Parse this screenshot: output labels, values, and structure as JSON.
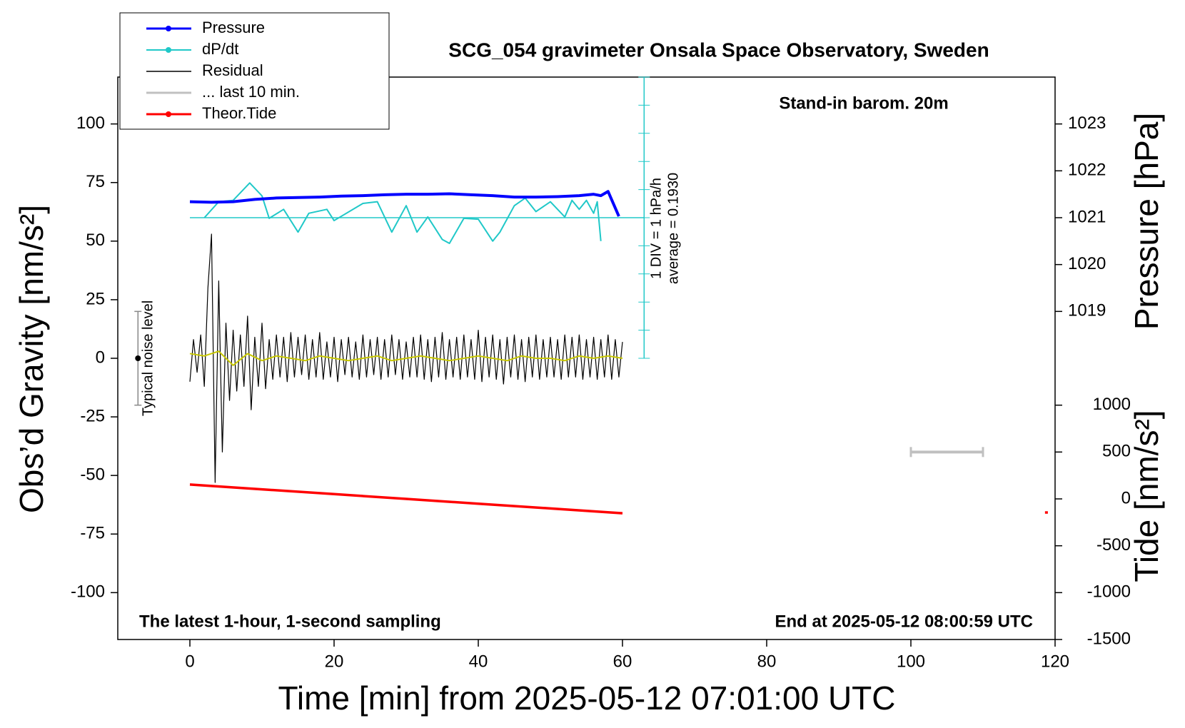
{
  "chart_data": {
    "type": "line",
    "title": "SCG_054 gravimeter Onsala Space Observatory, Sweden",
    "xlabel": "Time [min] from 2025-05-12 07:01:00 UTC",
    "ylabel": "Obs’d Gravity [nm/s²]",
    "y2label": "Pressure [hPa]",
    "y3label": "Tide [nm/s²]",
    "annotations": {
      "barometer": "Stand-in barom. 20m",
      "sampling": "The latest 1-hour, 1-second sampling",
      "end": "End at 2025-05-12 08:00:59 UTC",
      "noise": "Typical noise level",
      "div": "1 DIV = 1 hPa/h",
      "average": "average = 0.1930"
    },
    "xlim": [
      -10,
      120
    ],
    "xticks": [
      0,
      20,
      40,
      60,
      80,
      100,
      120
    ],
    "ylim": [
      -120,
      120
    ],
    "yticks": [
      -100,
      -75,
      -50,
      -25,
      0,
      25,
      50,
      75,
      100
    ],
    "y2lim": [
      1012,
      1024
    ],
    "y2ticks": [
      1019,
      1020,
      1021,
      1022,
      1023
    ],
    "y3lim": [
      -1500,
      4500
    ],
    "y3ticks": [
      -1500,
      -1000,
      -500,
      0,
      500,
      1000
    ],
    "dpdt_lim": [
      -4.807,
      5.193
    ],
    "dpdt_average": 0.193,
    "dpdt_div": 1,
    "noise_bar": {
      "x": -7.2,
      "low": -20,
      "center": 0,
      "high": 20
    },
    "series": [
      {
        "name": "Pressure",
        "color": "#0000ff",
        "axis": "y2",
        "marker": true,
        "width": 4,
        "x": [
          0,
          3,
          6,
          9,
          12,
          15,
          18,
          21,
          24,
          27,
          30,
          33,
          36,
          39,
          42,
          45,
          48,
          51,
          54,
          56,
          57,
          58,
          59.5
        ],
        "values": [
          1021.34,
          1021.33,
          1021.34,
          1021.39,
          1021.42,
          1021.43,
          1021.44,
          1021.46,
          1021.47,
          1021.49,
          1021.5,
          1021.5,
          1021.51,
          1021.49,
          1021.47,
          1021.44,
          1021.44,
          1021.45,
          1021.47,
          1021.5,
          1021.47,
          1021.56,
          1021.03
        ]
      },
      {
        "name": "dP/dt",
        "color": "#20c8c8",
        "axis": "dpdt",
        "marker": true,
        "width": 2,
        "x": [
          2,
          4,
          6,
          8.3,
          10,
          11,
          13,
          15,
          16.5,
          19,
          20,
          24,
          26,
          28,
          30,
          31.5,
          33,
          35,
          36,
          38,
          40,
          42,
          43,
          45,
          46.5,
          48,
          50,
          52,
          53,
          54,
          55,
          56,
          56.5,
          57
        ],
        "values": [
          0.19,
          0.76,
          0.81,
          1.43,
          0.97,
          0.17,
          0.49,
          -0.32,
          0.35,
          0.49,
          0.09,
          0.7,
          0.76,
          -0.32,
          0.62,
          -0.32,
          0.22,
          -0.58,
          -0.72,
          0.17,
          0.14,
          -0.64,
          -0.32,
          0.62,
          0.89,
          0.41,
          0.76,
          0.22,
          0.81,
          0.49,
          0.81,
          0.35,
          0.76,
          -0.64
        ]
      },
      {
        "name": "Residual",
        "color": "#000000",
        "axis": "y",
        "marker": false,
        "width": 1.2,
        "x": [
          0,
          0.5,
          1,
          1.5,
          2,
          2.5,
          3,
          3.5,
          4,
          4.5,
          5,
          5.5,
          6,
          6.5,
          7,
          7.5,
          8,
          8.5,
          9,
          9.5,
          10,
          10.5,
          11,
          11.5,
          12,
          12.5,
          13,
          13.5,
          14,
          14.5,
          15,
          15.5,
          16,
          16.5,
          17,
          17.5,
          18,
          18.5,
          19,
          19.5,
          20,
          20.5,
          21,
          21.5,
          22,
          22.5,
          23,
          23.5,
          24,
          24.5,
          25,
          25.5,
          26,
          26.5,
          27,
          27.5,
          28,
          28.5,
          29,
          29.5,
          30,
          30.5,
          31,
          31.5,
          32,
          32.5,
          33,
          33.5,
          34,
          34.5,
          35,
          35.5,
          36,
          36.5,
          37,
          37.5,
          38,
          38.5,
          39,
          39.5,
          40,
          40.5,
          41,
          41.5,
          42,
          42.5,
          43,
          43.5,
          44,
          44.5,
          45,
          45.5,
          46,
          46.5,
          47,
          47.5,
          48,
          48.5,
          49,
          49.5,
          50,
          50.5,
          51,
          51.5,
          52,
          52.5,
          53,
          53.5,
          54,
          54.5,
          55,
          55.5,
          56,
          56.5,
          57,
          57.5,
          58,
          58.5,
          59,
          59.5,
          60
        ],
        "values": [
          -10,
          8,
          -6,
          10,
          -12,
          30,
          53,
          -53,
          33,
          -40,
          15,
          -18,
          12,
          -14,
          10,
          -12,
          18,
          -22,
          9,
          -12,
          15,
          -13,
          8,
          -9,
          10,
          -8,
          9,
          -10,
          11,
          -8,
          9,
          -7,
          10,
          -9,
          8,
          -8,
          11,
          -9,
          7,
          -8,
          9,
          -10,
          8,
          -7,
          9,
          -8,
          7,
          -9,
          10,
          -8,
          8,
          -7,
          9,
          -9,
          8,
          -8,
          10,
          -7,
          8,
          -9,
          7,
          -8,
          9,
          -8,
          10,
          -9,
          8,
          -10,
          9,
          -8,
          11,
          -9,
          8,
          -8,
          9,
          -9,
          10,
          -8,
          8,
          -9,
          12,
          -10,
          9,
          -8,
          10,
          -9,
          8,
          -11,
          9,
          -8,
          10,
          -9,
          8,
          -10,
          9,
          -8,
          10,
          -9,
          8,
          -8,
          9,
          -8,
          8,
          -9,
          10,
          -8,
          9,
          -8,
          10,
          -9,
          8,
          -8,
          9,
          -9,
          8,
          -8,
          10,
          -9,
          8,
          -8,
          7
        ]
      },
      {
        "name": "... last 10 min.",
        "color": "#c0c0c0",
        "axis": "y3",
        "marker": false,
        "width": 4,
        "x": [
          100,
          110
        ],
        "values": [
          500,
          500
        ]
      },
      {
        "name": "Theor.Tide",
        "color": "#ff0000",
        "axis": "y3",
        "marker": true,
        "width": 3.5,
        "x": [
          0,
          10,
          20,
          30,
          40,
          50,
          60,
          90,
          118.6,
          119
        ],
        "values": [
          153,
          102,
          51,
          0,
          -51,
          -102,
          -153,
          null,
          -145,
          -145
        ]
      },
      {
        "color": "#c8c800",
        "axis": "y",
        "marker": false,
        "width": 2,
        "x": [
          0,
          2,
          4,
          6,
          8,
          10,
          12,
          14,
          16,
          18,
          20,
          22,
          24,
          26,
          28,
          30,
          32,
          34,
          36,
          38,
          40,
          42,
          44,
          46,
          48,
          50,
          52,
          54,
          56,
          58,
          60
        ],
        "values": [
          2,
          1,
          3,
          -3,
          2,
          -1,
          1,
          0,
          -1,
          1,
          0,
          -1,
          0,
          1,
          -1,
          0,
          1,
          0,
          -1,
          0,
          1,
          0,
          -1,
          1,
          0,
          0,
          -1,
          1,
          0,
          1,
          0
        ]
      }
    ]
  }
}
